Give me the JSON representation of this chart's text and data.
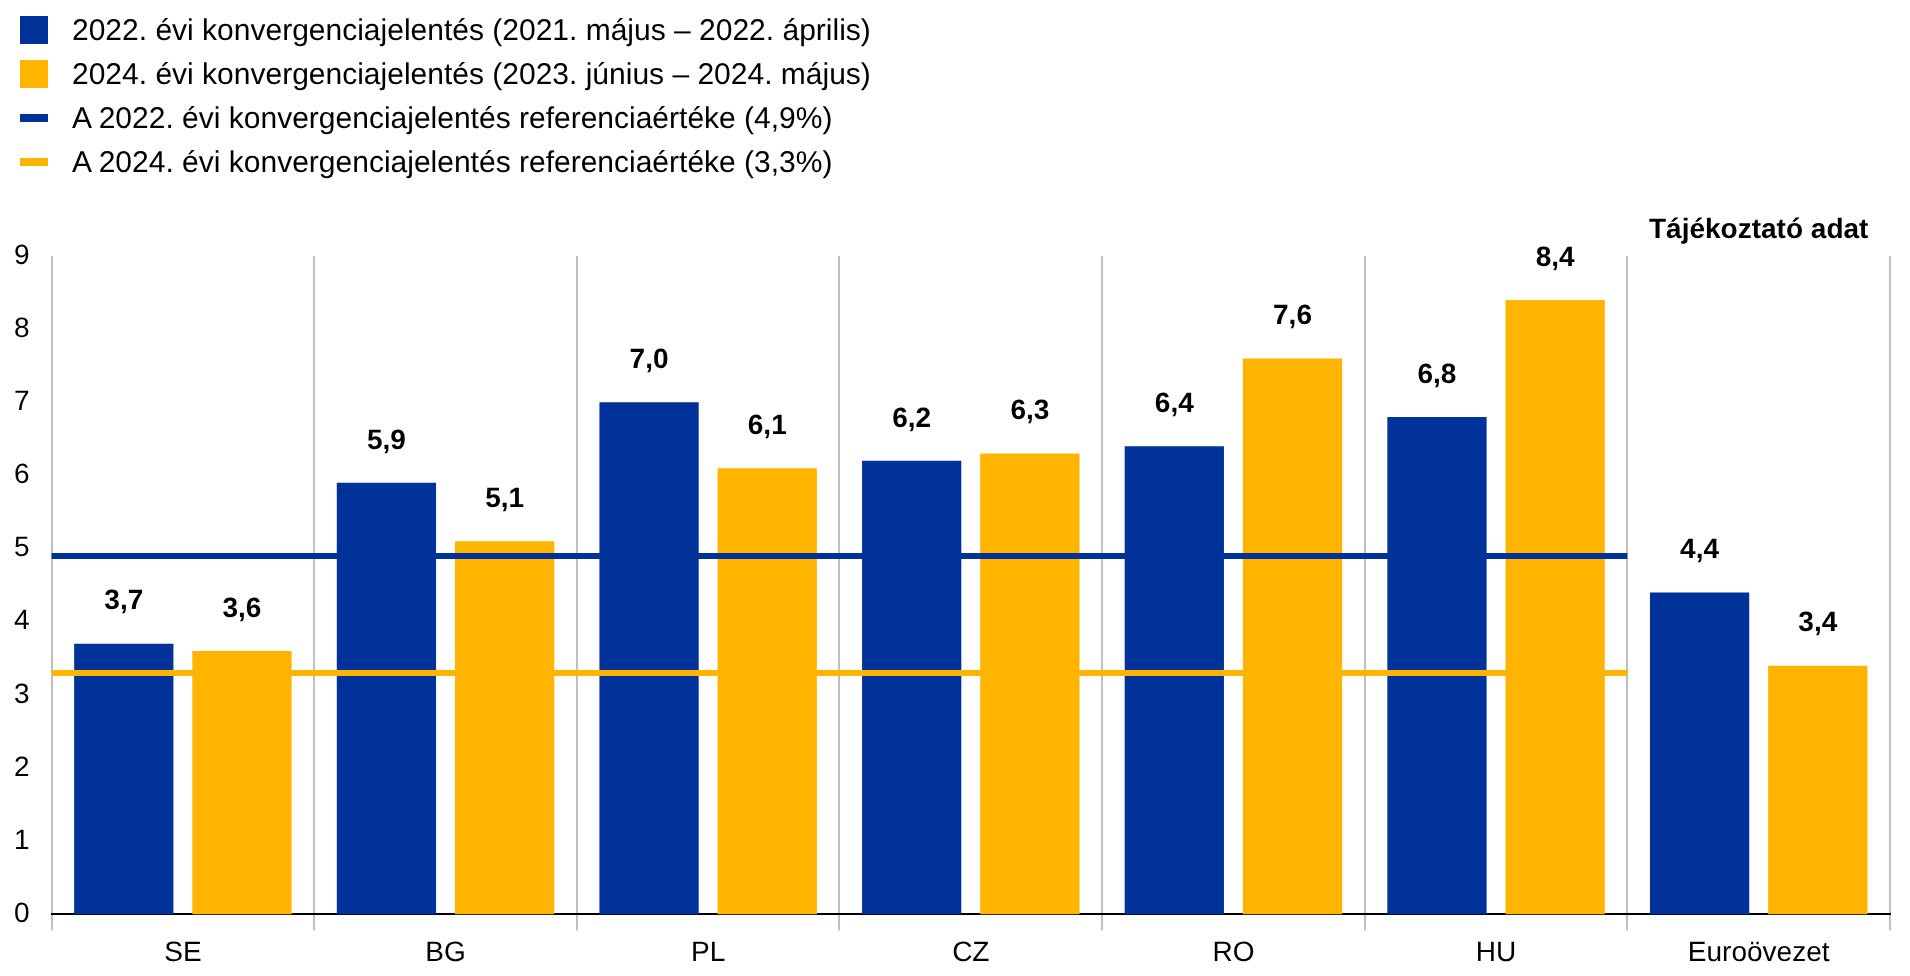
{
  "chart_data": {
    "type": "bar",
    "categories": [
      "SE",
      "BG",
      "PL",
      "CZ",
      "RO",
      "HU",
      "Euroövezet"
    ],
    "series": [
      {
        "name": "2022. évi konvergenciajelentés (2021. május – 2022. április)",
        "color": "#003299",
        "values": [
          3.7,
          5.9,
          7.0,
          6.2,
          6.4,
          6.8,
          4.4
        ],
        "value_labels": [
          "3,7",
          "5,9",
          "7,0",
          "6,2",
          "6,4",
          "6,8",
          "4,4"
        ]
      },
      {
        "name": "2024. évi konvergenciajelentés (2023. június – 2024. május)",
        "color": "#ffb400",
        "values": [
          3.6,
          5.1,
          6.1,
          6.3,
          7.6,
          8.4,
          3.4
        ],
        "value_labels": [
          "3,6",
          "5,1",
          "6,1",
          "6,3",
          "7,6",
          "8,4",
          "3,4"
        ]
      }
    ],
    "ref_lines": [
      {
        "axis": "y",
        "value": 4.9,
        "label": "A 2022. évi konvergenciajelentés referenciaértéke (4,9%)",
        "color": "#003299"
      },
      {
        "axis": "y",
        "value": 3.3,
        "label": "A 2024. évi konvergenciajelentés referenciaértéke (3,3%)",
        "color": "#ffb400"
      }
    ],
    "annotations": [
      "Tájékoztató adat"
    ],
    "ylim": [
      0,
      9
    ],
    "yticks": [
      0,
      1,
      2,
      3,
      4,
      5,
      6,
      7,
      8,
      9
    ],
    "grid": "x",
    "legend": "top left"
  }
}
